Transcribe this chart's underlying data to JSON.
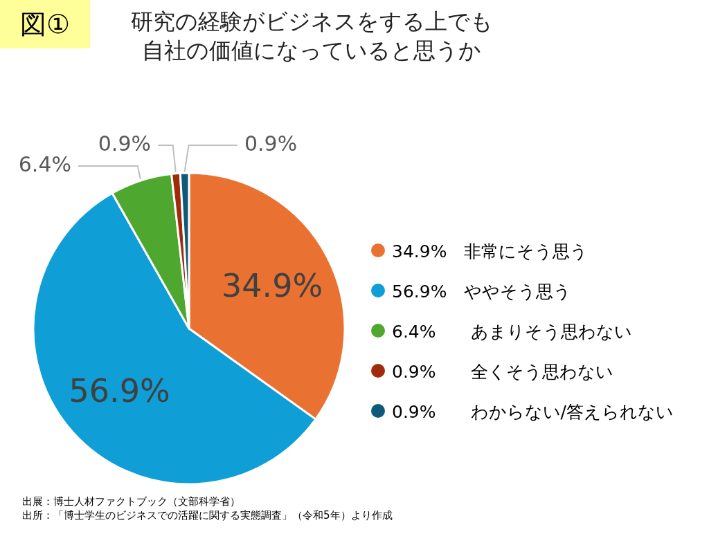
{
  "chart_data": {
    "type": "pie",
    "title": "研究の経験がビジネスをする上でも自社の価値になっていると思うか",
    "categories": [
      "34.9%　非常にそう思う",
      "56.9%　ややそう思う",
      "6.4%　　あまりそう思わない",
      "0.9%　　全くそう思わない",
      "0.9%　　わからない/答えられない"
    ],
    "values": [
      34.9,
      56.9,
      6.4,
      0.9,
      0.9
    ],
    "value_labels": [
      "34.9%",
      "56.9%",
      "6.4%",
      "0.9%",
      "0.9%"
    ],
    "colors": [
      "#e97132",
      "#0f9ed5",
      "#4ea72e",
      "#a02b0b",
      "#0e5a7a"
    ],
    "legend": "right",
    "annotations": [
      "図①",
      "出展：博士人材ファクトブック（文部科学省）",
      "出所：「博士学生のビジネスでの活躍に関する実態調査」（令和5年）より作成"
    ]
  }
}
